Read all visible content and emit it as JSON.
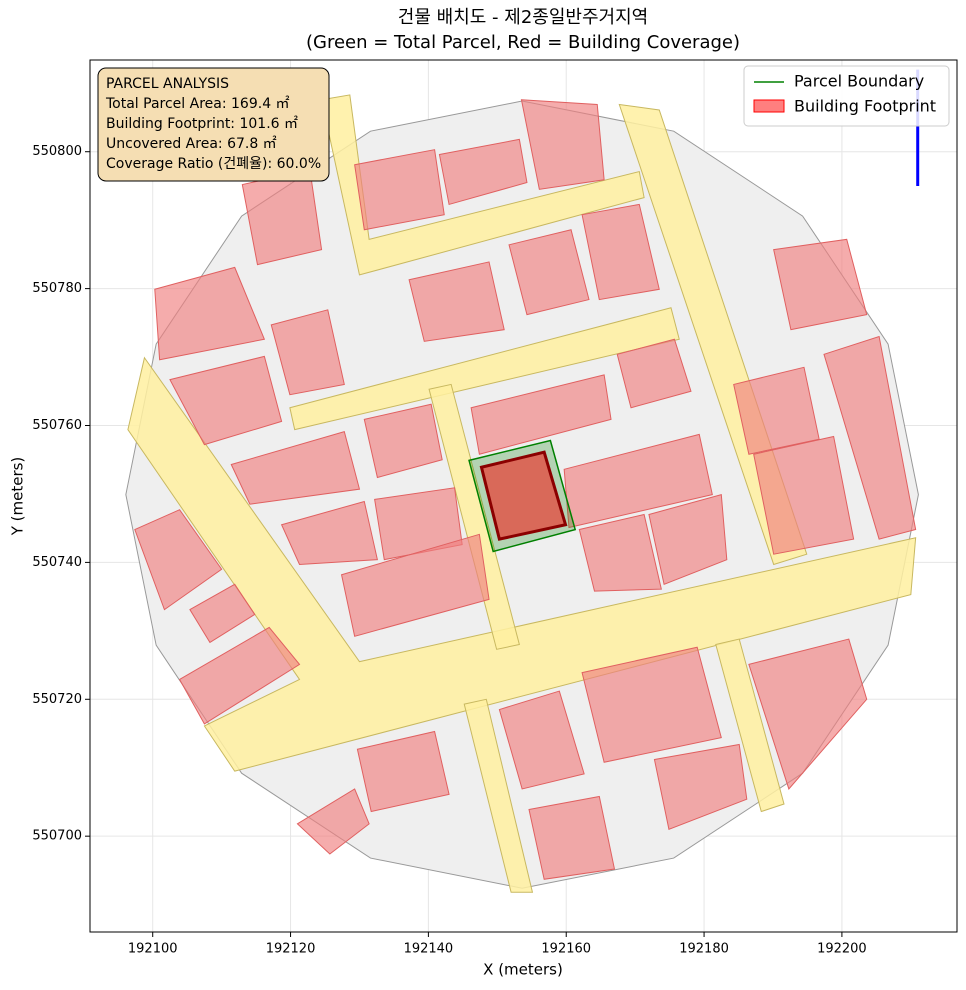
{
  "chart_data": {
    "type": "map",
    "title": "건물 배치도 - 제2종일반주거지역",
    "subtitle": "(Green = Total Parcel, Red = Building Coverage)",
    "xlabel": "X (meters)",
    "ylabel": "Y (meters)",
    "xlim": [
      192090.9,
      192216.7
    ],
    "ylim": [
      550686.0,
      550813.4
    ],
    "xticks": [
      192100,
      192120,
      192140,
      192160,
      192180,
      192200
    ],
    "yticks": [
      550700,
      550720,
      550740,
      550760,
      550780,
      550800
    ],
    "grid": true,
    "legend_position": "upper-right",
    "site_color": "#efefef",
    "road_color": "#fff0a0",
    "neighbor_color": "#f08080",
    "site_boundary": {
      "x": [
        192211.1,
        192206.7,
        192194.3,
        192175.6,
        192153.6,
        192131.6,
        192112.9,
        192100.5,
        192096.1,
        192100.5,
        192112.9,
        192131.6,
        192153.6,
        192175.6,
        192194.3,
        192206.7
      ],
      "y": [
        550749.9,
        550771.9,
        550790.6,
        550803.0,
        550807.4,
        550803.0,
        550790.6,
        550771.9,
        550749.9,
        550727.9,
        550709.2,
        550696.8,
        550692.4,
        550696.8,
        550709.2,
        550727.9
      ]
    },
    "roads": [
      {
        "x": [
          192098.8,
          192130.0,
          192210.7,
          192210.0,
          192111.9,
          192107.5,
          192121.3,
          192096.4
        ],
        "y": [
          550769.9,
          550725.5,
          550743.6,
          550735.3,
          550709.5,
          550716.1,
          550722.9,
          550759.4
        ]
      },
      {
        "x": [
          192119.9,
          192175.2,
          192176.4,
          192120.6
        ],
        "y": [
          550762.6,
          550777.2,
          550772.6,
          550759.4
        ]
      },
      {
        "x": [
          192124.5,
          192128.6,
          192131.4,
          192170.6,
          192171.3,
          192130.0
        ],
        "y": [
          550807.6,
          550808.3,
          550787.2,
          550797.1,
          550793.3,
          550782.0
        ]
      },
      {
        "x": [
          192167.7,
          192173.5,
          192194.9,
          192190.1
        ],
        "y": [
          550806.9,
          550806.1,
          550741.2,
          550739.7
        ]
      },
      {
        "x": [
          192140.1,
          192143.3,
          192153.2,
          192149.9
        ],
        "y": [
          550765.3,
          550766.0,
          550728.0,
          550727.3
        ]
      },
      {
        "x": [
          192145.2,
          192148.4,
          192155.1,
          192152.0
        ],
        "y": [
          550719.3,
          550720.0,
          550691.8,
          550691.8
        ]
      },
      {
        "x": [
          192181.7,
          192185.1,
          192191.6,
          192188.3
        ],
        "y": [
          550728.0,
          550728.8,
          550704.7,
          550703.6
        ]
      }
    ],
    "neighbors": [
      {
        "x": [
          192129.3,
          192140.9,
          192142.3,
          192130.7
        ],
        "y": [
          550798.1,
          550800.3,
          550790.8,
          550788.6
        ]
      },
      {
        "x": [
          192141.6,
          192153.2,
          192154.3,
          192143.0
        ],
        "y": [
          550799.6,
          550801.8,
          550795.5,
          550792.3
        ]
      },
      {
        "x": [
          192153.5,
          192164.5,
          192165.5,
          192156.1
        ],
        "y": [
          550807.6,
          550806.9,
          550795.9,
          550794.5
        ]
      },
      {
        "x": [
          192113.0,
          192122.8,
          192124.5,
          192115.2
        ],
        "y": [
          550795.2,
          550797.4,
          550785.7,
          550783.5
        ]
      },
      {
        "x": [
          192100.3,
          192111.9,
          192116.2,
          192101.0
        ],
        "y": [
          550779.9,
          550783.1,
          550772.6,
          550769.6
        ]
      },
      {
        "x": [
          192137.2,
          192148.8,
          192151.0,
          192139.4
        ],
        "y": [
          550781.3,
          550783.9,
          550774.0,
          550772.3
        ]
      },
      {
        "x": [
          192151.7,
          192160.7,
          192163.3,
          192154.3
        ],
        "y": [
          550786.4,
          550788.6,
          550778.4,
          550776.2
        ]
      },
      {
        "x": [
          192162.3,
          192170.6,
          192173.5,
          192164.8
        ],
        "y": [
          550790.8,
          550792.3,
          550779.9,
          550778.4
        ]
      },
      {
        "x": [
          192117.2,
          192125.4,
          192127.8,
          192119.9
        ],
        "y": [
          550774.7,
          550776.9,
          550766.0,
          550764.5
        ]
      },
      {
        "x": [
          192102.5,
          192116.2,
          192118.7,
          192107.5
        ],
        "y": [
          550766.7,
          550770.1,
          550760.6,
          550757.2
        ]
      },
      {
        "x": [
          192130.7,
          192140.4,
          192142.0,
          192132.6
        ],
        "y": [
          550760.9,
          550763.1,
          550755.0,
          550752.4
        ]
      },
      {
        "x": [
          192146.2,
          192165.5,
          192166.5,
          192147.4
        ],
        "y": [
          550762.6,
          550767.4,
          550760.9,
          550755.8
        ]
      },
      {
        "x": [
          192167.4,
          192175.7,
          192178.1,
          192169.4
        ],
        "y": [
          550770.4,
          550772.6,
          550765.0,
          550762.6
        ]
      },
      {
        "x": [
          192111.4,
          192127.8,
          192130.0,
          192114.1
        ],
        "y": [
          550754.3,
          550759.1,
          550750.7,
          550748.5
        ]
      },
      {
        "x": [
          192132.2,
          192143.8,
          192144.9,
          192133.6
        ],
        "y": [
          550749.2,
          550750.9,
          550742.6,
          550740.4
        ]
      },
      {
        "x": [
          192159.7,
          192179.3,
          192181.2,
          192160.4
        ],
        "y": [
          550753.6,
          550758.7,
          550749.9,
          550745.1
        ]
      },
      {
        "x": [
          192118.7,
          192130.7,
          192132.6,
          192121.3
        ],
        "y": [
          550745.5,
          550748.9,
          550740.4,
          550739.7
        ]
      },
      {
        "x": [
          192127.4,
          192147.4,
          192148.8,
          192129.3
        ],
        "y": [
          550738.2,
          550744.1,
          550734.6,
          550729.2
        ]
      },
      {
        "x": [
          192161.9,
          192171.3,
          192173.8,
          192164.1
        ],
        "y": [
          550744.8,
          550747.0,
          550736.1,
          550735.8
        ]
      },
      {
        "x": [
          192172.0,
          192182.5,
          192183.3,
          192174.2
        ],
        "y": [
          550747.0,
          550749.9,
          550740.4,
          550736.8
        ]
      },
      {
        "x": [
          192184.3,
          192194.5,
          192196.7,
          192186.5
        ],
        "y": [
          550766.0,
          550768.5,
          550758.0,
          550755.8
        ]
      },
      {
        "x": [
          192187.2,
          192198.8,
          192201.7,
          192190.1
        ],
        "y": [
          550755.8,
          550758.4,
          550743.4,
          550741.2
        ]
      },
      {
        "x": [
          192190.1,
          192200.7,
          192203.6,
          192192.6
        ],
        "y": [
          550785.7,
          550787.2,
          550776.2,
          550774.0
        ]
      },
      {
        "x": [
          192197.4,
          192205.4,
          192210.7,
          192205.4
        ],
        "y": [
          550770.4,
          550773.0,
          550744.8,
          550743.4
        ]
      },
      {
        "x": [
          192097.4,
          192103.9,
          192110.0,
          192101.7
        ],
        "y": [
          550744.8,
          550747.7,
          550739.0,
          550733.1
        ]
      },
      {
        "x": [
          192103.9,
          192116.9,
          192121.3,
          192107.5
        ],
        "y": [
          550722.9,
          550730.5,
          550725.1,
          550716.4
        ]
      },
      {
        "x": [
          192105.4,
          192111.9,
          192114.8,
          192108.3
        ],
        "y": [
          550733.1,
          550736.8,
          550732.4,
          550728.3
        ]
      },
      {
        "x": [
          192129.7,
          192140.9,
          192143.0,
          192131.7
        ],
        "y": [
          550712.7,
          550715.3,
          550706.1,
          550703.6
        ]
      },
      {
        "x": [
          192150.3,
          192159.0,
          192162.6,
          192153.6
        ],
        "y": [
          550718.5,
          550721.2,
          550709.1,
          550706.9
        ]
      },
      {
        "x": [
          192162.3,
          192179.0,
          192182.5,
          192165.5
        ],
        "y": [
          550723.9,
          550727.6,
          550714.4,
          550710.8
        ]
      },
      {
        "x": [
          192172.8,
          192185.1,
          192186.2,
          192174.9
        ],
        "y": [
          550711.2,
          550713.4,
          550705.4,
          550701.0
        ]
      },
      {
        "x": [
          192186.5,
          192201.0,
          192203.6,
          192192.3
        ],
        "y": [
          550725.1,
          550728.8,
          550720.0,
          550706.9
        ]
      },
      {
        "x": [
          192154.6,
          192164.8,
          192167.0,
          192156.8
        ],
        "y": [
          550703.9,
          550705.8,
          550695.2,
          550693.7
        ]
      },
      {
        "x": [
          192121.0,
          192129.3,
          192131.4,
          192125.7
        ],
        "y": [
          550701.8,
          550706.9,
          550701.8,
          550697.4
        ]
      }
    ],
    "parcel": {
      "name": "Parcel Boundary",
      "color": "#008000",
      "x": [
        192145.9,
        192157.7,
        192161.3,
        192149.4
      ],
      "y": [
        550754.9,
        550757.8,
        550744.8,
        550741.6
      ]
    },
    "building": {
      "name": "Building Footprint",
      "color": "#ff0000",
      "x": [
        192147.7,
        192156.8,
        192159.9,
        192150.3
      ],
      "y": [
        550753.9,
        550756.1,
        550745.5,
        550743.4
      ]
    },
    "north_arrow": {
      "color": "#0000ff",
      "x": [
        192211.0,
        192211.0
      ],
      "y": [
        550795.0,
        550812.0
      ]
    },
    "info_box": [
      "PARCEL ANALYSIS",
      "Total Parcel Area: 169.4 ㎡",
      "Building Footprint: 101.6 ㎡",
      "Uncovered Area: 67.8 ㎡",
      "Coverage Ratio (건폐율): 60.0%"
    ]
  }
}
